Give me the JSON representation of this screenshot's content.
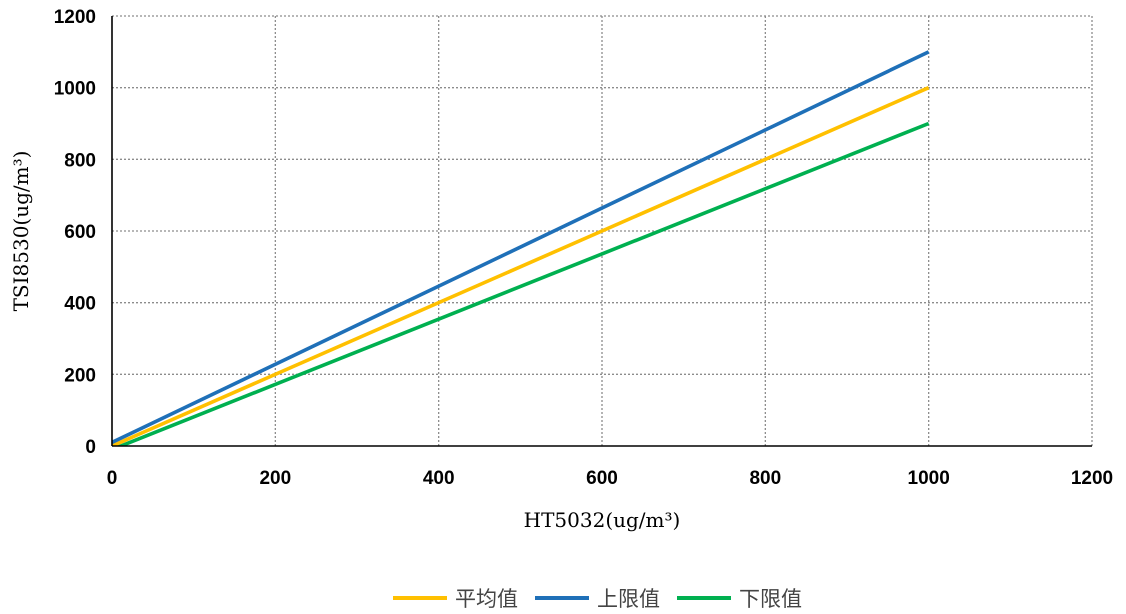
{
  "chart_data": {
    "type": "line",
    "title": "",
    "xlabel": "HT5032(ug/m³)",
    "ylabel": "TSI8530(ug/m³)",
    "xlim": [
      0,
      1200
    ],
    "ylim": [
      0,
      1200
    ],
    "x_ticks": [
      "0",
      "200",
      "400",
      "600",
      "800",
      "1000",
      "1200"
    ],
    "y_ticks": [
      "0",
      "200",
      "400",
      "600",
      "800",
      "1000",
      "1200"
    ],
    "grid": true,
    "legend_position": "bottom",
    "series": [
      {
        "name": "平均值",
        "color": "#FFC000",
        "x": [
          0,
          1000
        ],
        "y": [
          0,
          1000
        ]
      },
      {
        "name": "上限值",
        "color": "#1F70B8",
        "x": [
          0,
          1000
        ],
        "y": [
          10,
          1100
        ]
      },
      {
        "name": "下限值",
        "color": "#00B050",
        "x": [
          0,
          1000
        ],
        "y": [
          -10,
          900
        ]
      }
    ]
  }
}
